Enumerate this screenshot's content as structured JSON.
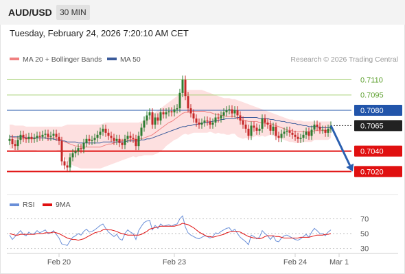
{
  "header": {
    "symbol": "AUD/USD",
    "timeframe": "30 MIN",
    "datetime": "Tuesday, February 24, 2026 7:20:10 AM CET"
  },
  "colors": {
    "ma20": "#f08080",
    "ma50": "#3a5a9a",
    "bollinger_fill": "#fde0e0",
    "candle_up": "#2e7d32",
    "candle_down": "#c62828",
    "support": "#e01010",
    "resistance": "#9ccc65",
    "pivot": "#2255aa",
    "current": "#222222",
    "arrow": "#2a5fb0",
    "rsi": "#6a8fd8",
    "rsi_ma": "#e01010"
  },
  "chart_data": [
    {
      "type": "line",
      "name": "price",
      "legend": [
        {
          "label": "MA 20 + Bollinger Bands",
          "color": "#f08080"
        },
        {
          "label": "MA 50",
          "color": "#3a5a9a"
        }
      ],
      "watermark": "Research © 2026 Trading Central",
      "x_ticks": [
        {
          "label": "Feb 20",
          "index": 18
        },
        {
          "label": "Feb 23",
          "index": 60
        },
        {
          "label": "Feb 24",
          "index": 104
        },
        {
          "label": "Mar 1",
          "index": 120
        }
      ],
      "ylim": [
        0.70035,
        0.71183
      ],
      "levels": [
        {
          "label": "0.7110",
          "value": 0.711,
          "kind": "resistance"
        },
        {
          "label": "0.7095",
          "value": 0.7095,
          "kind": "resistance"
        },
        {
          "label": "0.7080",
          "value": 0.708,
          "kind": "pivot"
        },
        {
          "label": "0.7065",
          "value": 0.7065,
          "kind": "current"
        },
        {
          "label": "0.7040",
          "value": 0.704,
          "kind": "support"
        },
        {
          "label": "0.7020",
          "value": 0.702,
          "kind": "support"
        }
      ],
      "forecast": {
        "from": {
          "index": 117,
          "value": 0.7065
        },
        "to": {
          "index": 125,
          "value": 0.702
        }
      },
      "closes": [
        0.7052,
        0.7047,
        0.7045,
        0.7051,
        0.7056,
        0.7053,
        0.7052,
        0.7054,
        0.7052,
        0.7053,
        0.7055,
        0.7054,
        0.7056,
        0.7057,
        0.7054,
        0.7055,
        0.7057,
        0.7054,
        0.705,
        0.703,
        0.7026,
        0.7024,
        0.7034,
        0.7038,
        0.704,
        0.7043,
        0.7042,
        0.7048,
        0.7052,
        0.705,
        0.7051,
        0.7053,
        0.7056,
        0.7059,
        0.7062,
        0.7058,
        0.7055,
        0.7053,
        0.705,
        0.7052,
        0.7048,
        0.7046,
        0.7052,
        0.7055,
        0.7053,
        0.7052,
        0.7045,
        0.7055,
        0.7063,
        0.707,
        0.7075,
        0.7078,
        0.7066,
        0.7073,
        0.707,
        0.7078,
        0.7076,
        0.7078,
        0.7079,
        0.7078,
        0.7081,
        0.7082,
        0.7097,
        0.711,
        0.7094,
        0.7082,
        0.7077,
        0.7072,
        0.7068,
        0.7066,
        0.7068,
        0.707,
        0.7069,
        0.7066,
        0.7068,
        0.7073,
        0.7072,
        0.7075,
        0.7078,
        0.708,
        0.7081,
        0.7077,
        0.708,
        0.7075,
        0.707,
        0.7066,
        0.7062,
        0.7055,
        0.7065,
        0.7063,
        0.706,
        0.7062,
        0.7072,
        0.7068,
        0.7066,
        0.706,
        0.7064,
        0.7055,
        0.7053,
        0.7057,
        0.7059,
        0.706,
        0.7058,
        0.7056,
        0.7054,
        0.7052,
        0.7053,
        0.7056,
        0.7059,
        0.7055,
        0.7061,
        0.7066,
        0.7064,
        0.7061,
        0.7061,
        0.7058,
        0.7062,
        0.7065
      ],
      "ma20": [
        0.7054,
        0.7054,
        0.7053,
        0.7053,
        0.7052,
        0.7052,
        0.7052,
        0.7052,
        0.7052,
        0.7052,
        0.7053,
        0.7053,
        0.7053,
        0.7053,
        0.7053,
        0.7053,
        0.7053,
        0.7053,
        0.7052,
        0.7051,
        0.7049,
        0.7048,
        0.7047,
        0.7046,
        0.7045,
        0.7045,
        0.7044,
        0.7044,
        0.7044,
        0.7044,
        0.7044,
        0.7044,
        0.7044,
        0.7044,
        0.7045,
        0.7046,
        0.7047,
        0.7047,
        0.7048,
        0.7049,
        0.705,
        0.705,
        0.7051,
        0.7051,
        0.7051,
        0.7052,
        0.7051,
        0.7052,
        0.7052,
        0.7053,
        0.7054,
        0.7055,
        0.7056,
        0.7058,
        0.706,
        0.7062,
        0.7064,
        0.7066,
        0.7068,
        0.7069,
        0.7071,
        0.7073,
        0.7075,
        0.7077,
        0.7078,
        0.7078,
        0.7079,
        0.7079,
        0.7079,
        0.7079,
        0.7079,
        0.7079,
        0.7078,
        0.7078,
        0.7077,
        0.7076,
        0.7076,
        0.7075,
        0.7075,
        0.7074,
        0.7074,
        0.7074,
        0.7074,
        0.7072,
        0.7071,
        0.707,
        0.707,
        0.7069,
        0.7069,
        0.7069,
        0.7069,
        0.7068,
        0.7068,
        0.7067,
        0.7067,
        0.7067,
        0.7066,
        0.7065,
        0.7064,
        0.7063,
        0.7062,
        0.7061,
        0.706,
        0.706,
        0.7059,
        0.7059,
        0.7059,
        0.7059,
        0.7059,
        0.7059,
        0.7059,
        0.706,
        0.706,
        0.706,
        0.706,
        0.706,
        0.706,
        0.7061
      ],
      "ma50": [
        0.7054,
        0.7054,
        0.7054,
        0.7054,
        0.7054,
        0.7054,
        0.7053,
        0.7053,
        0.7053,
        0.7053,
        0.7053,
        0.7053,
        0.7053,
        0.7053,
        0.7052,
        0.7052,
        0.7052,
        0.7051,
        0.7051,
        0.705,
        0.705,
        0.7049,
        0.7049,
        0.7049,
        0.7049,
        0.7048,
        0.7048,
        0.7048,
        0.7048,
        0.7048,
        0.7048,
        0.7048,
        0.7048,
        0.7048,
        0.7049,
        0.7049,
        0.7049,
        0.7049,
        0.7049,
        0.7049,
        0.7049,
        0.7049,
        0.7049,
        0.705,
        0.705,
        0.705,
        0.705,
        0.705,
        0.7051,
        0.7051,
        0.7052,
        0.7052,
        0.7053,
        0.7054,
        0.7055,
        0.7056,
        0.7057,
        0.7058,
        0.7059,
        0.706,
        0.7061,
        0.7062,
        0.7063,
        0.7064,
        0.7064,
        0.7065,
        0.7065,
        0.7066,
        0.7066,
        0.7067,
        0.7067,
        0.7068,
        0.7068,
        0.7069,
        0.7069,
        0.707,
        0.707,
        0.7071,
        0.7071,
        0.7072,
        0.7072,
        0.7072,
        0.7072,
        0.7073,
        0.7073,
        0.7073,
        0.7073,
        0.7073,
        0.7073,
        0.7073,
        0.7073,
        0.7072,
        0.7072,
        0.7072,
        0.7072,
        0.7071,
        0.7071,
        0.707,
        0.707,
        0.7069,
        0.7069,
        0.7068,
        0.7068,
        0.7067,
        0.7067,
        0.7066,
        0.7066,
        0.7065,
        0.7065,
        0.7064,
        0.7064,
        0.7064,
        0.7064,
        0.7063,
        0.7063,
        0.7063,
        0.7063,
        0.7063
      ],
      "bb_upper": [
        0.7066,
        0.7066,
        0.7065,
        0.7065,
        0.7065,
        0.7065,
        0.7064,
        0.7064,
        0.7064,
        0.7064,
        0.7064,
        0.7064,
        0.7064,
        0.7064,
        0.7064,
        0.7064,
        0.7064,
        0.7064,
        0.7064,
        0.7064,
        0.7065,
        0.7066,
        0.7066,
        0.7066,
        0.7066,
        0.7066,
        0.7066,
        0.7066,
        0.7066,
        0.7066,
        0.7066,
        0.7066,
        0.7066,
        0.7066,
        0.7067,
        0.7068,
        0.7068,
        0.7068,
        0.7068,
        0.7068,
        0.7068,
        0.7068,
        0.7068,
        0.7068,
        0.7068,
        0.7068,
        0.7068,
        0.7068,
        0.7069,
        0.707,
        0.7072,
        0.7074,
        0.7076,
        0.7078,
        0.708,
        0.7082,
        0.7084,
        0.7086,
        0.7088,
        0.709,
        0.7092,
        0.7094,
        0.7096,
        0.7098,
        0.7099,
        0.71,
        0.71,
        0.71,
        0.71,
        0.71,
        0.71,
        0.7099,
        0.7098,
        0.7097,
        0.7096,
        0.7095,
        0.7094,
        0.7093,
        0.7092,
        0.7092,
        0.7092,
        0.7091,
        0.7091,
        0.709,
        0.7089,
        0.7088,
        0.7087,
        0.7086,
        0.7085,
        0.7084,
        0.7083,
        0.7082,
        0.7081,
        0.708,
        0.7079,
        0.7078,
        0.7077,
        0.7076,
        0.7075,
        0.7074,
        0.7073,
        0.7072,
        0.7071,
        0.7071,
        0.707,
        0.707,
        0.707,
        0.7069,
        0.7069,
        0.7069,
        0.7069,
        0.7069,
        0.7069,
        0.7069,
        0.7069,
        0.7069,
        0.7069,
        0.7069
      ],
      "bb_lower": [
        0.7042,
        0.7042,
        0.7041,
        0.7041,
        0.704,
        0.704,
        0.704,
        0.704,
        0.704,
        0.704,
        0.7041,
        0.7041,
        0.7041,
        0.7041,
        0.7041,
        0.7041,
        0.7041,
        0.7041,
        0.704,
        0.7038,
        0.7033,
        0.703,
        0.7028,
        0.7026,
        0.7025,
        0.7024,
        0.7023,
        0.7023,
        0.7023,
        0.7023,
        0.7023,
        0.7023,
        0.7023,
        0.7023,
        0.7024,
        0.7025,
        0.7026,
        0.7027,
        0.7028,
        0.7029,
        0.703,
        0.7031,
        0.7032,
        0.7033,
        0.7034,
        0.7035,
        0.7034,
        0.7035,
        0.7035,
        0.7036,
        0.7036,
        0.7036,
        0.7036,
        0.7037,
        0.7038,
        0.704,
        0.7042,
        0.7045,
        0.7047,
        0.7049,
        0.7051,
        0.7052,
        0.7054,
        0.7056,
        0.7057,
        0.7056,
        0.7057,
        0.7058,
        0.7058,
        0.7058,
        0.7058,
        0.7058,
        0.7058,
        0.7059,
        0.7058,
        0.7057,
        0.7058,
        0.7057,
        0.7057,
        0.7056,
        0.7056,
        0.7057,
        0.7057,
        0.7054,
        0.7053,
        0.7052,
        0.7053,
        0.7052,
        0.7053,
        0.7054,
        0.7055,
        0.7054,
        0.7055,
        0.7054,
        0.7055,
        0.7056,
        0.7055,
        0.7054,
        0.7053,
        0.7052,
        0.7051,
        0.705,
        0.7049,
        0.7049,
        0.7048,
        0.7048,
        0.7048,
        0.7049,
        0.7049,
        0.7049,
        0.7049,
        0.7051,
        0.7051,
        0.7051,
        0.7051,
        0.7051,
        0.7051,
        0.7053
      ]
    },
    {
      "type": "line",
      "name": "rsi",
      "legend": [
        {
          "label": "RSI",
          "color": "#6a8fd8"
        },
        {
          "label": "9MA",
          "color": "#e01010"
        }
      ],
      "ylim": [
        25,
        75
      ],
      "y_ticks": [
        {
          "label": "70",
          "value": 70
        },
        {
          "label": "50",
          "value": 50
        },
        {
          "label": "30",
          "value": 30
        }
      ],
      "rsi": [
        48,
        42,
        46,
        50,
        54,
        49,
        47,
        52,
        49,
        50,
        54,
        51,
        53,
        55,
        50,
        51,
        54,
        49,
        44,
        36,
        35,
        34,
        40,
        45,
        47,
        50,
        48,
        53,
        56,
        52,
        53,
        55,
        58,
        61,
        63,
        57,
        52,
        49,
        46,
        49,
        43,
        41,
        50,
        55,
        52,
        50,
        42,
        54,
        60,
        65,
        67,
        68,
        55,
        61,
        57,
        63,
        60,
        61,
        62,
        60,
        62,
        63,
        70,
        74,
        59,
        51,
        48,
        46,
        44,
        43,
        45,
        47,
        46,
        44,
        46,
        51,
        50,
        53,
        55,
        57,
        58,
        53,
        56,
        50,
        45,
        42,
        39,
        35,
        48,
        46,
        43,
        45,
        54,
        50,
        47,
        42,
        47,
        40,
        39,
        44,
        47,
        48,
        46,
        44,
        42,
        41,
        43,
        46,
        49,
        45,
        52,
        57,
        54,
        50,
        50,
        47,
        52,
        55
      ],
      "rsi_ma": [
        50,
        49,
        48,
        48,
        49,
        49,
        49,
        49,
        49,
        49,
        50,
        50,
        50,
        51,
        51,
        51,
        52,
        51,
        50,
        48,
        46,
        44,
        43,
        42,
        42,
        41,
        42,
        43,
        45,
        47,
        49,
        51,
        52,
        53,
        55,
        56,
        55,
        55,
        54,
        53,
        51,
        50,
        49,
        48,
        48,
        48,
        48,
        48,
        49,
        51,
        53,
        56,
        57,
        58,
        59,
        60,
        60,
        60,
        60,
        60,
        60,
        61,
        62,
        64,
        63,
        62,
        60,
        58,
        55,
        52,
        50,
        48,
        46,
        46,
        45,
        46,
        47,
        48,
        49,
        51,
        52,
        53,
        53,
        53,
        52,
        50,
        48,
        46,
        45,
        44,
        44,
        43,
        44,
        46,
        47,
        47,
        47,
        46,
        46,
        45,
        44,
        44,
        44,
        44,
        44,
        44,
        45,
        45,
        45,
        45,
        46,
        47,
        48,
        48,
        48,
        49,
        49,
        50
      ]
    }
  ]
}
